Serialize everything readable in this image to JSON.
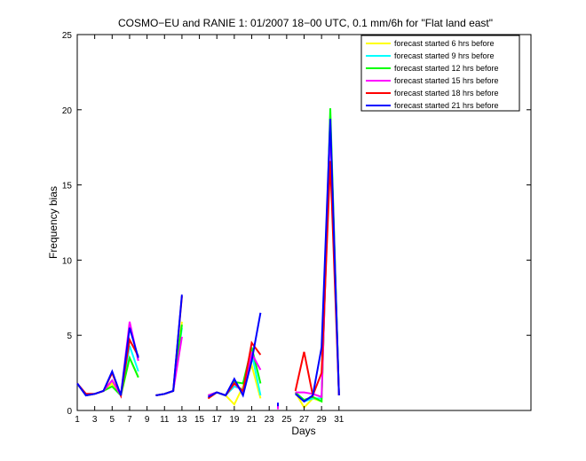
{
  "chart_data": {
    "type": "line",
    "title": "COSMO−EU and RANIE 1: 01/2007 18−00 UTC, 0.1 mm/6h for \"Flat land east\"",
    "xlabel": "Days",
    "ylabel": "Frequency bias",
    "xlim": [
      1,
      53
    ],
    "ylim": [
      0,
      25
    ],
    "xticks": [
      1,
      3,
      5,
      7,
      9,
      11,
      13,
      15,
      17,
      19,
      21,
      23,
      25,
      27,
      29,
      31
    ],
    "yticks": [
      0,
      5,
      10,
      15,
      20,
      25
    ],
    "grid": false,
    "legend_position": "top-right",
    "x": [
      1,
      2,
      3,
      4,
      5,
      6,
      7,
      8,
      9,
      10,
      11,
      12,
      13,
      14,
      15,
      16,
      17,
      18,
      19,
      20,
      21,
      22,
      23,
      24,
      25,
      26,
      27,
      28,
      29,
      30,
      31
    ],
    "series": [
      {
        "name": "forecast started 6 hrs before",
        "color": "#ffff00",
        "values": [
          1.8,
          1.0,
          1.1,
          1.3,
          1.8,
          1.0,
          3.5,
          2.2,
          null,
          1.0,
          1.1,
          1.3,
          5.9,
          null,
          null,
          0.8,
          1.2,
          1.0,
          0.4,
          1.6,
          3.0,
          0.8,
          null,
          null,
          null,
          1.2,
          0.2,
          0.8,
          0.6,
          19.5,
          1.0
        ]
      },
      {
        "name": "forecast started 9 hrs before",
        "color": "#00ffff",
        "values": [
          1.8,
          1.0,
          1.1,
          1.3,
          2.0,
          1.0,
          4.3,
          2.6,
          null,
          1.0,
          1.1,
          1.3,
          5.5,
          null,
          null,
          1.0,
          1.2,
          1.0,
          1.6,
          1.4,
          3.8,
          1.0,
          null,
          null,
          null,
          1.2,
          0.6,
          0.8,
          0.8,
          19.6,
          1.0
        ]
      },
      {
        "name": "forecast started 12 hrs before",
        "color": "#00ff00",
        "values": [
          1.8,
          1.0,
          1.1,
          1.3,
          1.6,
          1.0,
          3.5,
          2.2,
          null,
          1.0,
          1.1,
          1.3,
          5.7,
          null,
          null,
          1.0,
          1.2,
          1.0,
          1.9,
          1.8,
          4.2,
          1.8,
          null,
          null,
          null,
          1.2,
          0.7,
          0.9,
          0.6,
          20.1,
          1.0
        ]
      },
      {
        "name": "forecast started 15 hrs before",
        "color": "#ff00ff",
        "values": [
          1.8,
          1.0,
          1.1,
          1.3,
          2.0,
          1.0,
          5.9,
          3.3,
          null,
          1.0,
          1.1,
          1.3,
          4.9,
          null,
          null,
          1.0,
          1.2,
          1.0,
          1.8,
          1.2,
          3.8,
          2.7,
          null,
          0.2,
          null,
          1.2,
          1.2,
          1.1,
          0.9,
          19.0,
          1.0
        ]
      },
      {
        "name": "forecast started 18 hrs before",
        "color": "#ff0000",
        "values": [
          1.8,
          1.1,
          1.1,
          1.3,
          2.5,
          1.0,
          4.7,
          3.6,
          null,
          1.0,
          1.1,
          1.3,
          7.6,
          null,
          null,
          0.8,
          1.2,
          1.0,
          1.8,
          1.3,
          4.5,
          3.7,
          null,
          null,
          null,
          1.3,
          3.9,
          1.0,
          2.5,
          16.6,
          1.0
        ]
      },
      {
        "name": "forecast started 21 hrs before",
        "color": "#0000ff",
        "values": [
          1.8,
          1.0,
          1.1,
          1.3,
          2.6,
          1.0,
          5.5,
          3.5,
          null,
          1.0,
          1.1,
          1.3,
          7.7,
          null,
          null,
          0.9,
          1.2,
          1.0,
          2.1,
          1.0,
          3.3,
          6.5,
          null,
          0.4,
          null,
          1.1,
          0.6,
          1.0,
          4.2,
          19.4,
          1.0
        ]
      }
    ]
  }
}
